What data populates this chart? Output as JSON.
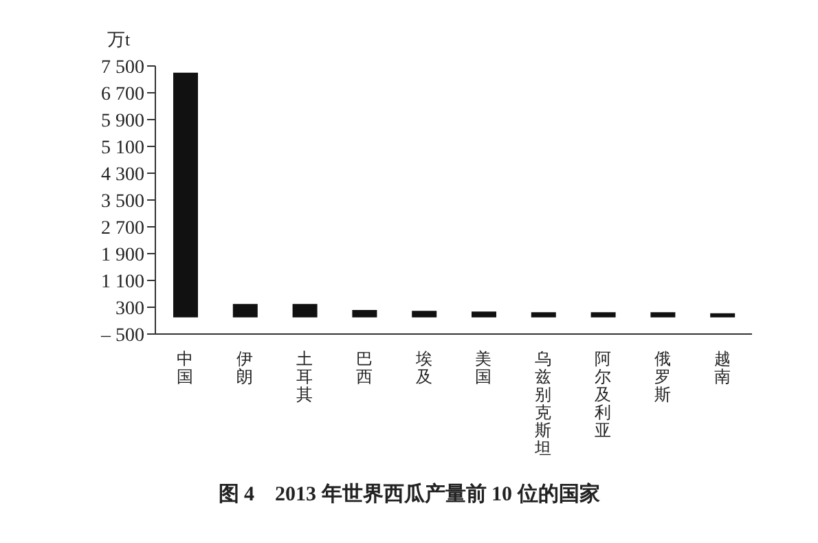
{
  "chart_data": {
    "type": "bar",
    "title": "图 4　2013 年世界西瓜产量前 10 位的国家",
    "ylabel": "万t",
    "categories": [
      "中国",
      "伊朗",
      "土耳其",
      "巴西",
      "埃及",
      "美国",
      "乌兹别克斯坦",
      "阿尔及利亚",
      "俄罗斯",
      "越南"
    ],
    "values": [
      7300,
      400,
      400,
      220,
      190,
      170,
      150,
      150,
      150,
      120
    ],
    "color": "#111111",
    "ylim": [
      -500,
      7500
    ],
    "yticks": [
      {
        "value": -500,
        "label": "– 500"
      },
      300,
      {
        "value": 1100,
        "label": "1 100"
      },
      {
        "value": 1900,
        "label": "1 900"
      },
      {
        "value": 2700,
        "label": "2 700"
      },
      {
        "value": 3500,
        "label": "3 500"
      },
      {
        "value": 4300,
        "label": "4 300"
      },
      {
        "value": 5100,
        "label": "5 100"
      },
      {
        "value": 5900,
        "label": "5 900"
      },
      {
        "value": 6700,
        "label": "6 700"
      },
      {
        "value": 7500,
        "label": "7 500"
      }
    ],
    "grid": false,
    "legend": false
  }
}
